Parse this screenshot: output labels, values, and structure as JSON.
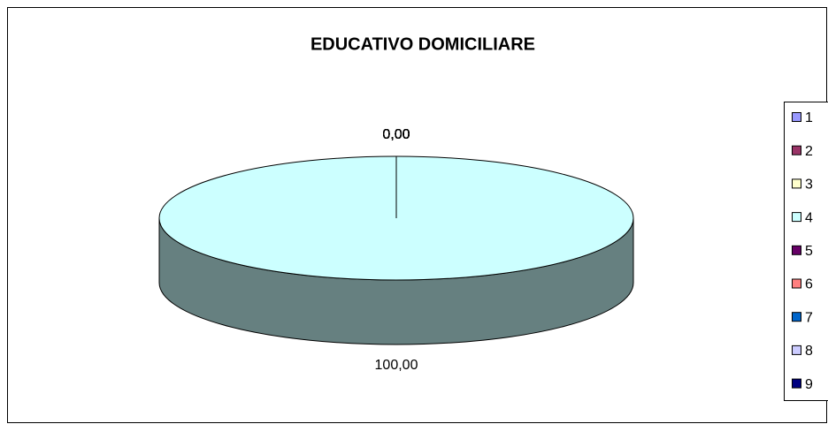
{
  "chart_data": {
    "type": "pie",
    "title": "EDUCATIVO DOMICILIARE",
    "categories": [
      "1",
      "2",
      "3",
      "4",
      "5",
      "6",
      "7",
      "8",
      "9"
    ],
    "values": [
      0,
      0,
      0,
      100,
      0,
      0,
      0,
      0,
      0
    ],
    "value_labels": [
      "0,00",
      "0,00",
      "0,00",
      "100,00",
      "0,00",
      "0,00",
      "0,00",
      "0,00",
      "0,00"
    ],
    "colors": [
      "#9999ff",
      "#993366",
      "#ffffcc",
      "#ccffff",
      "#660066",
      "#ff8080",
      "#0066cc",
      "#ccccff",
      "#000080"
    ],
    "legend": "right"
  }
}
